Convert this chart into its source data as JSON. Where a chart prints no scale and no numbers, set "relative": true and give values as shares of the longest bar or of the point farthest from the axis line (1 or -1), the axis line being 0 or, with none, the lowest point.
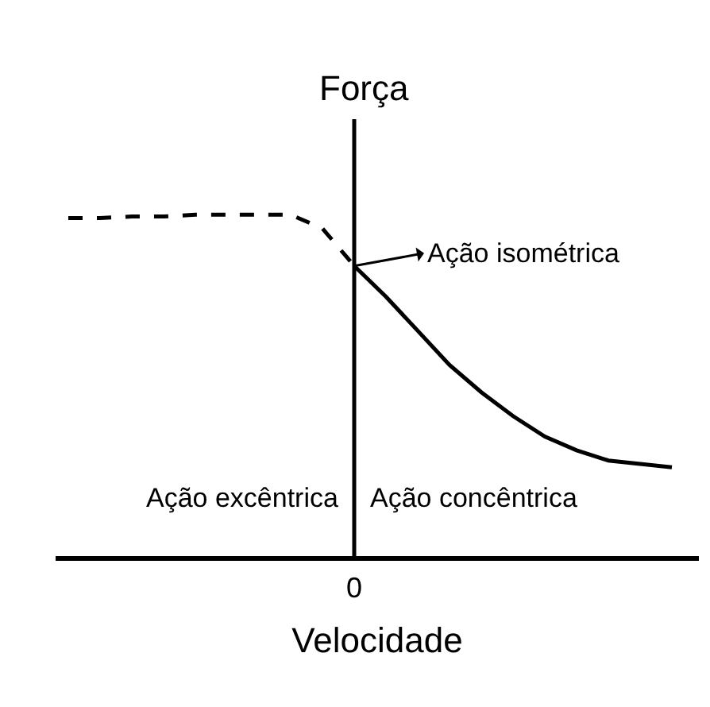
{
  "chart_data": {
    "type": "line",
    "relative": true,
    "ylabel": "Força",
    "xlabel": "Velocidade",
    "categories": [
      null,
      null,
      null,
      null,
      null,
      null,
      null,
      null,
      null,
      null,
      null,
      null,
      null,
      null,
      null,
      null,
      null,
      null,
      null,
      null
    ],
    "series": [
      {
        "color": "#000000",
        "line_style": "dashed",
        "values": [
          0.99,
          0.99,
          0.995,
          0.995,
          1.0,
          1.0,
          1.0,
          1.0,
          0.96,
          0.85,
          null,
          null,
          null,
          null,
          null,
          null,
          null,
          null,
          null,
          null
        ]
      },
      {
        "color": "#000000",
        "line_style": "solid",
        "values": [
          null,
          null,
          null,
          null,
          null,
          null,
          null,
          null,
          null,
          0.85,
          0.76,
          0.66,
          0.56,
          0.48,
          0.41,
          0.35,
          0.31,
          0.28,
          0.27,
          0.26
        ]
      }
    ],
    "annotations": [
      "Ação isométrica",
      "0",
      "Ação excêntrica",
      "Ação concêntrica"
    ]
  }
}
